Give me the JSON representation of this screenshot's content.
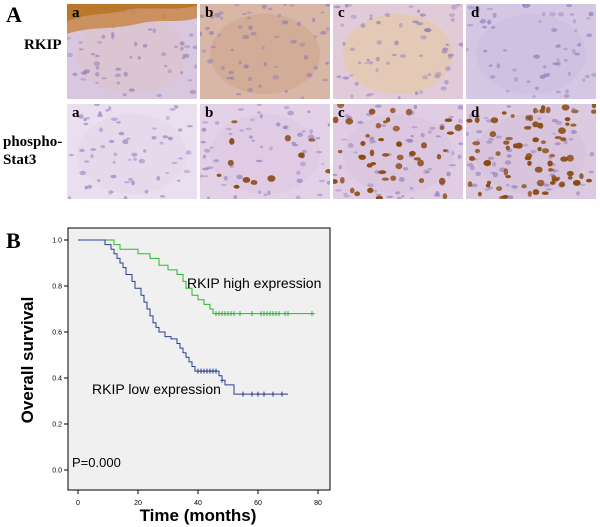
{
  "panel_A": {
    "letter": "A",
    "rows": [
      {
        "label": "RKIP",
        "tiles": [
          {
            "letter": "a",
            "tint": "#d9c7e0",
            "brown_band": true,
            "brown_dots": 0,
            "wash": "#dcc3c9"
          },
          {
            "letter": "b",
            "tint": "#d8b7a6",
            "brown_band": false,
            "brown_dots": 0,
            "wash": "#cfa58e"
          },
          {
            "letter": "c",
            "tint": "#e1cbd9",
            "brown_band": false,
            "brown_dots": 0,
            "wash": "#e8c8a0"
          },
          {
            "letter": "d",
            "tint": "#d3c7e3",
            "brown_band": false,
            "brown_dots": 0,
            "wash": "#cbbde0"
          }
        ]
      },
      {
        "label": "phospho-\nStat3",
        "tiles": [
          {
            "letter": "a",
            "tint": "#eadfef",
            "brown_band": false,
            "brown_dots": 0,
            "wash": "#e4d5ea"
          },
          {
            "letter": "b",
            "tint": "#e3d2e7",
            "brown_band": false,
            "brown_dots": 14,
            "wash": "#dcc6e3"
          },
          {
            "letter": "c",
            "tint": "#e0cde4",
            "brown_band": false,
            "brown_dots": 45,
            "wash": "#d9c3dd"
          },
          {
            "letter": "d",
            "tint": "#dccbe0",
            "brown_band": false,
            "brown_dots": 75,
            "wash": "#d6bfd8"
          }
        ]
      }
    ]
  },
  "panel_B": {
    "letter": "B",
    "annotations": {
      "p_value": "P=0.000",
      "high_label": "RKIP high expression",
      "low_label": "RKIP low expression"
    }
  },
  "chart_data": {
    "type": "line",
    "title": "",
    "xlabel": "Time (months)",
    "ylabel": "Overall survival",
    "xlim": [
      0,
      80
    ],
    "ylim": [
      0.0,
      1.0
    ],
    "xticks": [
      0,
      20,
      40,
      60,
      80
    ],
    "yticks": [
      0.0,
      0.2,
      0.4,
      0.6,
      0.8,
      1.0
    ],
    "grid": false,
    "background": "#f0f0f0",
    "series": [
      {
        "name": "RKIP high expression",
        "color": "#2db52d",
        "steps": [
          [
            0,
            1.0
          ],
          [
            10,
            1.0
          ],
          [
            12,
            0.98
          ],
          [
            14,
            0.96
          ],
          [
            20,
            0.94
          ],
          [
            24,
            0.92
          ],
          [
            27,
            0.89
          ],
          [
            30,
            0.87
          ],
          [
            33,
            0.85
          ],
          [
            35,
            0.82
          ],
          [
            36,
            0.79
          ],
          [
            38,
            0.76
          ],
          [
            40,
            0.74
          ],
          [
            42,
            0.72
          ],
          [
            44,
            0.7
          ],
          [
            45,
            0.68
          ],
          [
            79,
            0.68
          ]
        ],
        "censored": [
          46,
          47,
          48,
          49,
          50,
          51,
          52,
          54,
          58,
          61,
          62,
          63,
          64,
          65,
          66,
          67,
          69,
          70,
          78
        ]
      },
      {
        "name": "RKIP low expression",
        "color": "#2a3f8f",
        "steps": [
          [
            0,
            1.0
          ],
          [
            8,
            1.0
          ],
          [
            9,
            0.98
          ],
          [
            11,
            0.96
          ],
          [
            12,
            0.94
          ],
          [
            13,
            0.92
          ],
          [
            14,
            0.9
          ],
          [
            15,
            0.88
          ],
          [
            16,
            0.85
          ],
          [
            18,
            0.82
          ],
          [
            19,
            0.79
          ],
          [
            21,
            0.76
          ],
          [
            22,
            0.73
          ],
          [
            23,
            0.7
          ],
          [
            24,
            0.67
          ],
          [
            25,
            0.64
          ],
          [
            26,
            0.62
          ],
          [
            27,
            0.6
          ],
          [
            29,
            0.58
          ],
          [
            31,
            0.57
          ],
          [
            33,
            0.55
          ],
          [
            34,
            0.53
          ],
          [
            35,
            0.51
          ],
          [
            36,
            0.49
          ],
          [
            37,
            0.47
          ],
          [
            38,
            0.45
          ],
          [
            39,
            0.43
          ],
          [
            47,
            0.41
          ],
          [
            48,
            0.39
          ],
          [
            49,
            0.37
          ],
          [
            52,
            0.33
          ],
          [
            70,
            0.33
          ]
        ],
        "censored": [
          40,
          41,
          42,
          43,
          44,
          45,
          46,
          48,
          55,
          58,
          60,
          62,
          65,
          68
        ]
      }
    ]
  }
}
